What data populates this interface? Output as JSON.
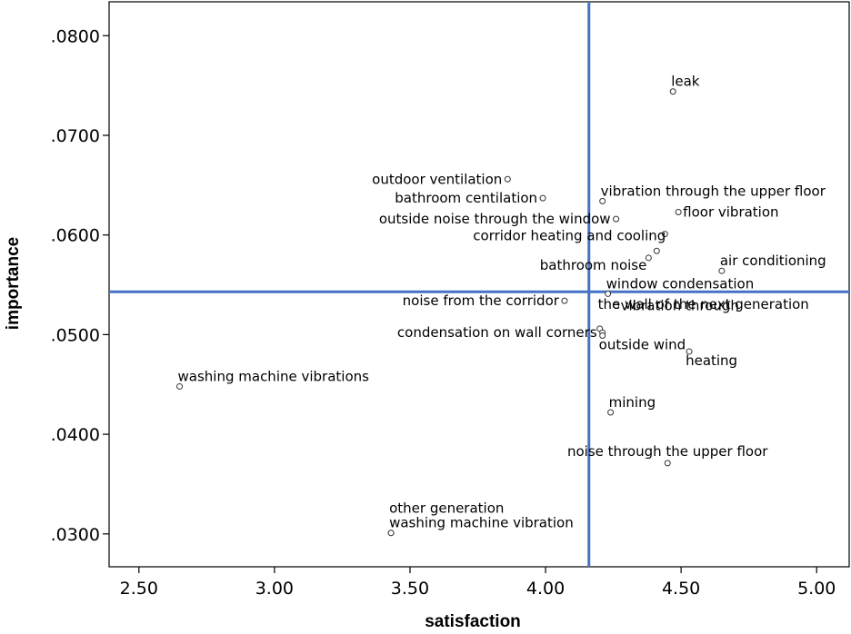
{
  "chart_data": {
    "type": "scatter",
    "xlabel": "satisfaction",
    "ylabel": "importance",
    "xlim": [
      2.39,
      5.12
    ],
    "ylim": [
      0.0267,
      0.0834
    ],
    "x_ticks": [
      {
        "value": 2.5,
        "label": "2.50"
      },
      {
        "value": 3.0,
        "label": "3.00"
      },
      {
        "value": 3.5,
        "label": "3.50"
      },
      {
        "value": 4.0,
        "label": "4.00"
      },
      {
        "value": 4.5,
        "label": "4.50"
      },
      {
        "value": 5.0,
        "label": "5.00"
      }
    ],
    "y_ticks": [
      {
        "value": 0.03,
        "label": ".0300"
      },
      {
        "value": 0.04,
        "label": ".0400"
      },
      {
        "value": 0.05,
        "label": ".0500"
      },
      {
        "value": 0.06,
        "label": ".0600"
      },
      {
        "value": 0.07,
        "label": ".0700"
      },
      {
        "value": 0.08,
        "label": ".0800"
      }
    ],
    "reference_lines": {
      "x": 4.16,
      "y": 0.0543
    },
    "line_color": "#4472c4",
    "points": [
      {
        "x": 4.47,
        "y": 0.0744,
        "label": "leak",
        "pos": "ne"
      },
      {
        "x": 3.86,
        "y": 0.0656,
        "label": "outdoor ventilation",
        "pos": "w"
      },
      {
        "x": 3.99,
        "y": 0.0637,
        "label": "bathroom centilation",
        "pos": "w"
      },
      {
        "x": 4.21,
        "y": 0.0634,
        "label": "vibration through the upper floor",
        "pos": "ne"
      },
      {
        "x": 4.49,
        "y": 0.0623,
        "label": "floor vibration",
        "pos": "e"
      },
      {
        "x": 4.26,
        "y": 0.0616,
        "label": "outside noise through the window",
        "pos": "w"
      },
      {
        "x": 4.44,
        "y": 0.0601,
        "label": "",
        "pos": "e"
      },
      {
        "x": 4.41,
        "y": 0.0584,
        "label": "corridor heating and cooling",
        "pos": "nw"
      },
      {
        "x": 4.38,
        "y": 0.0577,
        "label": "bathroom noise",
        "pos": "sw"
      },
      {
        "x": 4.65,
        "y": 0.0564,
        "label": "air conditioning",
        "pos": "ne"
      },
      {
        "x": 4.23,
        "y": 0.0541,
        "label": "window condensation",
        "pos": "ne"
      },
      {
        "x": 4.07,
        "y": 0.0534,
        "label": "noise from the corridor",
        "pos": "w"
      },
      {
        "x": 4.26,
        "y": 0.0529,
        "label": "vibration through",
        "pos": "e"
      },
      {
        "x": 4.2,
        "y": 0.0506,
        "label": "the wall of the next generation",
        "pos": "ne2"
      },
      {
        "x": 4.21,
        "y": 0.0502,
        "label": "condensation on wall corners",
        "pos": "w"
      },
      {
        "x": 4.21,
        "y": 0.0499,
        "label": "outside wind",
        "pos": "se"
      },
      {
        "x": 4.53,
        "y": 0.0483,
        "label": "heating",
        "pos": "se"
      },
      {
        "x": 2.65,
        "y": 0.0448,
        "label": "washing machine vibrations",
        "pos": "ne"
      },
      {
        "x": 4.24,
        "y": 0.0422,
        "label": "mining",
        "pos": "ne"
      },
      {
        "x": 4.45,
        "y": 0.0371,
        "label": "noise through the upper floor",
        "pos": "n"
      },
      {
        "x": 3.43,
        "y": 0.0301,
        "label": "washing machine vibration",
        "pos": "ne"
      },
      {
        "x": 3.43,
        "y": 0.0301,
        "label": "other generation",
        "pos": "ne2"
      }
    ]
  }
}
